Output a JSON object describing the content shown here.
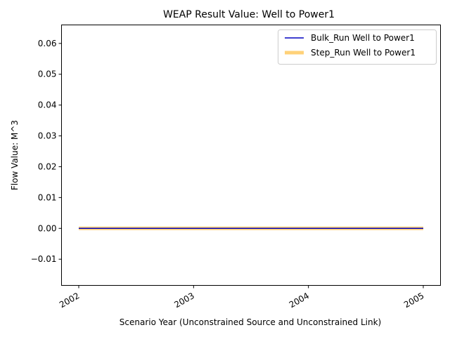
{
  "chart_data": {
    "type": "line",
    "title": "WEAP Result Value: Well to Power1",
    "xlabel": "Scenario Year (Unconstrained Source and Unconstrained Link)",
    "ylabel": "Flow Value: M^3",
    "x": [
      "2002",
      "2003",
      "2004",
      "2005"
    ],
    "xticks": [
      "2002",
      "2003",
      "2004",
      "2005"
    ],
    "xlim": [
      2001.85,
      2005.15
    ],
    "ylim": [
      -0.0185,
      0.066
    ],
    "yticks": [
      -0.01,
      0.0,
      0.01,
      0.02,
      0.03,
      0.04,
      0.05,
      0.06
    ],
    "ytick_labels": [
      "−0.01",
      "0.00",
      "0.01",
      "0.02",
      "0.03",
      "0.04",
      "0.05",
      "0.06"
    ],
    "grid": false,
    "legend_position": "top-right",
    "series": [
      {
        "name": "Bulk_Run Well to Power1",
        "x": [
          2002,
          2005
        ],
        "values": [
          0,
          0
        ],
        "color": "#0000bf",
        "style": "thin"
      },
      {
        "name": "Step_Run Well to Power1",
        "x": [
          2002,
          2005
        ],
        "values": [
          0,
          0
        ],
        "color": "#ffbf40",
        "style": "thick"
      }
    ]
  }
}
